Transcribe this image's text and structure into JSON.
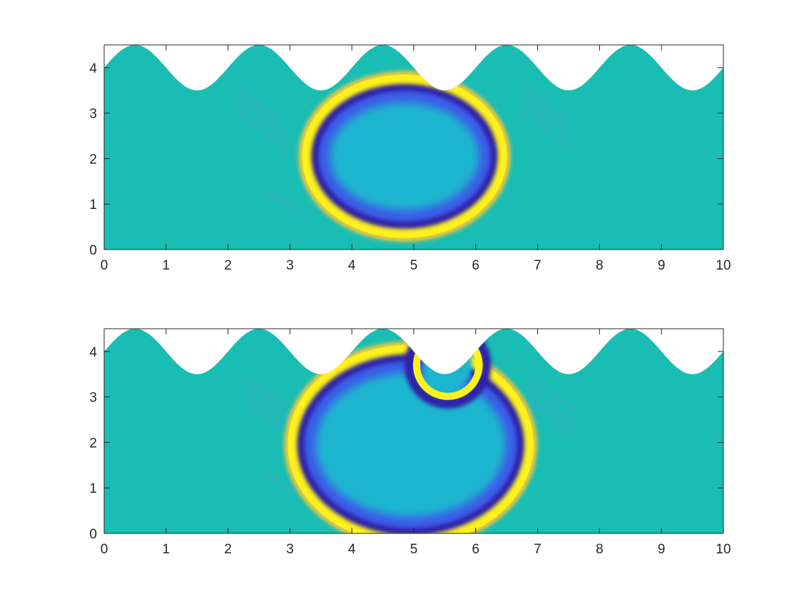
{
  "colors": {
    "background_field": "#1abdb3",
    "interior": "#1ab5cf",
    "ring_yellow": "#fdf21c",
    "ring_orange": "#f3c83b",
    "ring_blue": "#3d5ae8",
    "ring_dark": "#2e20a6",
    "outside": "#ffffff"
  },
  "chart_data": [
    {
      "type": "heatmap",
      "title": "",
      "xlabel": "",
      "ylabel": "",
      "xlim": [
        0,
        10
      ],
      "ylim": [
        0,
        4.5
      ],
      "x_ticks": [
        "0",
        "1",
        "2",
        "3",
        "4",
        "5",
        "6",
        "7",
        "8",
        "9",
        "10"
      ],
      "y_ticks": [
        "0",
        "1",
        "2",
        "3",
        "4"
      ],
      "top_boundary": {
        "shape": "cosine",
        "mean": 4.0,
        "amplitude": 0.5,
        "period": 2,
        "peak_at_x": [
          0.5,
          2.5,
          4.5,
          6.5,
          8.5
        ]
      },
      "ring": {
        "center": [
          4.85,
          2.05
        ],
        "radius_x": 1.62,
        "radius_y": 1.75
      },
      "colormap": "parula",
      "grid": false
    },
    {
      "type": "heatmap",
      "title": "",
      "xlabel": "",
      "ylabel": "",
      "xlim": [
        0,
        10
      ],
      "ylim": [
        0,
        4.5
      ],
      "x_ticks": [
        "0",
        "1",
        "2",
        "3",
        "4",
        "5",
        "6",
        "7",
        "8",
        "9",
        "10"
      ],
      "y_ticks": [
        "0",
        "1",
        "2",
        "3",
        "4"
      ],
      "top_boundary": {
        "shape": "cosine",
        "mean": 4.0,
        "amplitude": 0.5,
        "period": 2,
        "peak_at_x": [
          0.5,
          2.5,
          4.5,
          6.5,
          8.5
        ]
      },
      "ring": {
        "center": [
          4.95,
          1.95
        ],
        "radius_x": 1.95,
        "radius_y": 2.15
      },
      "reflected_arc": {
        "center": [
          5.55,
          3.7
        ],
        "radius": 0.62
      },
      "colormap": "parula",
      "grid": false
    }
  ]
}
